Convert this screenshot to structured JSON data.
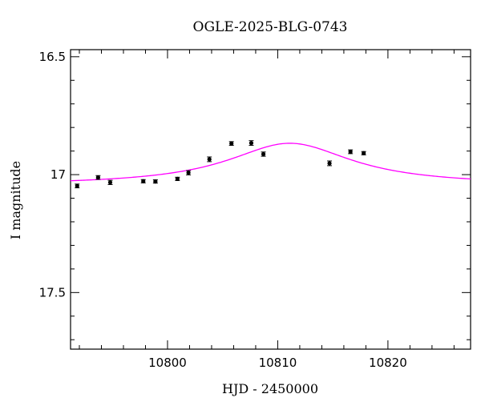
{
  "chart_data": {
    "type": "scatter",
    "title": "OGLE-2025-BLG-0743",
    "xlabel": "HJD - 2450000",
    "ylabel": "I magnitude",
    "xlim": [
      10791.2,
      10827.5
    ],
    "ylim": [
      17.74,
      16.47
    ],
    "y_inverted": true,
    "x_ticks": [
      10800,
      10810,
      10820
    ],
    "y_ticks": [
      16.5,
      17,
      17.5
    ],
    "x_tick_labels": [
      "10800",
      "10810",
      "10820"
    ],
    "y_tick_labels": [
      "16.5",
      "17",
      "17.5"
    ],
    "grid": false,
    "colors": {
      "data": "#000000",
      "model": "#ff00ff"
    },
    "series": [
      {
        "kind": "points",
        "x": [
          10791.8,
          10793.7,
          10794.8,
          10797.8,
          10798.9,
          10800.9,
          10801.9,
          10803.8,
          10805.8,
          10807.6,
          10808.7,
          10814.7,
          10816.6,
          10817.8
        ],
        "y": [
          17.048,
          17.012,
          17.033,
          17.028,
          17.029,
          17.018,
          16.992,
          16.935,
          16.868,
          16.866,
          16.913,
          16.952,
          16.903,
          16.909
        ],
        "err": [
          0.008,
          0.008,
          0.009,
          0.007,
          0.007,
          0.007,
          0.009,
          0.01,
          0.008,
          0.01,
          0.009,
          0.01,
          0.008,
          0.007
        ]
      },
      {
        "kind": "model",
        "baseline": 17.045,
        "amplitude": 0.178,
        "t0": 10811.1,
        "width": 6.9
      }
    ]
  }
}
